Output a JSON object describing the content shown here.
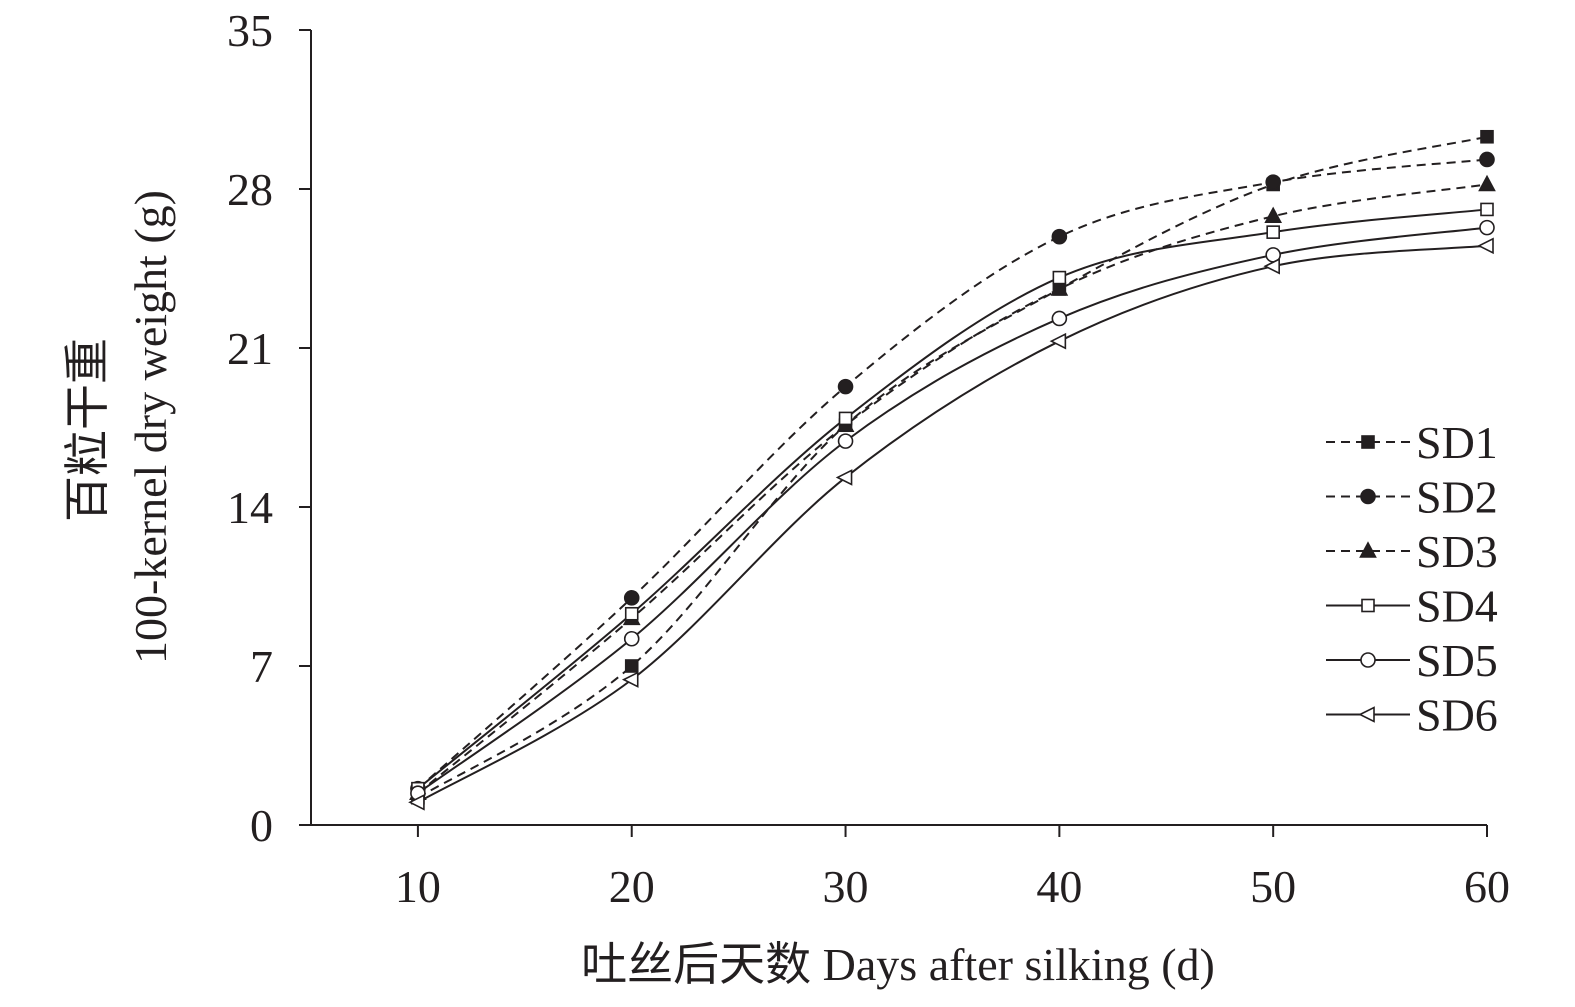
{
  "chart_data": {
    "type": "line",
    "title": "",
    "xlabel": "吐丝后天数 Days after silking (d)",
    "ylabel_cn": "百粒干重",
    "ylabel_en": "100-kernel dry weight (g)",
    "x": [
      10,
      20,
      30,
      40,
      50,
      60
    ],
    "x_ticks": [
      "10",
      "20",
      "30",
      "40",
      "50",
      "60"
    ],
    "y_ticks": [
      "0",
      "7",
      "14",
      "21",
      "28",
      "35"
    ],
    "xlim": [
      5,
      60
    ],
    "ylim": [
      0,
      35
    ],
    "legend_position": "right",
    "series": [
      {
        "name": "SD1",
        "values": [
          1.2,
          7.0,
          17.6,
          23.6,
          28.2,
          30.3
        ],
        "line": "dashed",
        "marker": "square-filled"
      },
      {
        "name": "SD2",
        "values": [
          1.6,
          10.0,
          19.3,
          25.9,
          28.3,
          29.3
        ],
        "line": "dashed",
        "marker": "circle-filled"
      },
      {
        "name": "SD3",
        "values": [
          1.4,
          9.1,
          17.6,
          23.6,
          26.8,
          28.2
        ],
        "line": "dashed",
        "marker": "triangle-filled"
      },
      {
        "name": "SD4",
        "values": [
          1.6,
          9.3,
          17.9,
          24.1,
          26.1,
          27.1
        ],
        "line": "solid",
        "marker": "square-open"
      },
      {
        "name": "SD5",
        "values": [
          1.4,
          8.2,
          16.9,
          22.3,
          25.1,
          26.3
        ],
        "line": "solid",
        "marker": "circle-open"
      },
      {
        "name": "SD6",
        "values": [
          1.0,
          6.4,
          15.3,
          21.3,
          24.6,
          25.5
        ],
        "line": "solid",
        "marker": "triangle-left-open"
      }
    ]
  }
}
